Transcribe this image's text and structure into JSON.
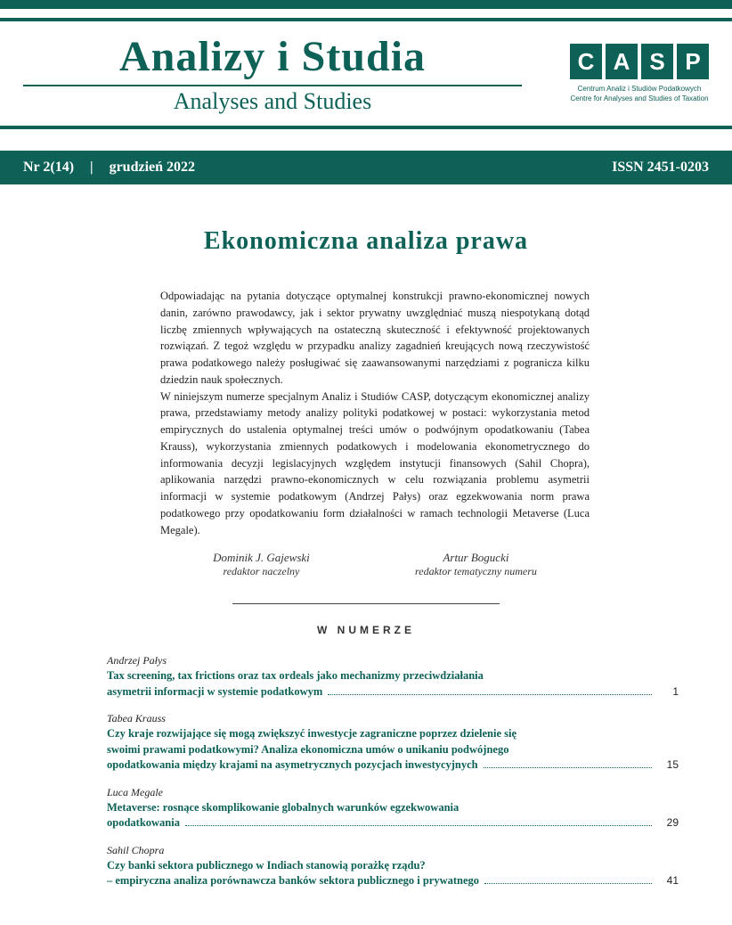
{
  "colors": {
    "teal": "#0d6157",
    "white": "#ffffff",
    "text": "#222222"
  },
  "masthead": {
    "title": "Analizy i Studia",
    "subtitle": "Analyses and Studies",
    "logo_letters": [
      "C",
      "A",
      "S",
      "P"
    ],
    "logo_caption_line1": "Centrum Analiz i Studiów Podatkowych",
    "logo_caption_line2": "Centre for Analyses and Studies of Taxation"
  },
  "issue_bar": {
    "number": "Nr 2(14)",
    "date": "grudzień 2022",
    "issn": "ISSN 2451-0203"
  },
  "article": {
    "title": "Ekonomiczna analiza prawa",
    "paragraph1": "Odpowiadając na pytania dotyczące optymalnej konstrukcji prawno-ekonomicznej nowych danin, zarówno prawodawcy, jak i sektor prywatny uwzględniać muszą niespotykaną dotąd liczbę zmiennych wpływających na ostateczną skuteczność i efektywność projektowanych rozwiązań. Z tegoż względu w przypadku analizy zagadnień kreujących nową rzeczywistość prawa podatkowego należy posługiwać się zaawansowanymi narzędziami z pogranicza kilku dziedzin nauk społecznych.",
    "paragraph2": "W niniejszym numerze specjalnym Analiz i Studiów CASP, dotyczącym ekonomicznej analizy prawa, przedstawiamy metody analizy polityki podatkowej w postaci: wykorzystania metod empirycznych do ustalenia optymalnej treści umów o podwójnym opodatkowaniu (Tabea Krauss), wykorzystania zmiennych podatkowych i modelowania ekonometrycznego do informowania decyzji legislacyjnych względem instytucji finansowych (Sahil Chopra), aplikowania narzędzi prawno-ekonomicznych w celu rozwiązania problemu asymetrii informacji w systemie podatkowym (Andrzej Pałys) oraz egzekwowania norm prawa podatkowego przy opodatkowaniu form działalności w ramach technologii Metaverse (Luca Megale)."
  },
  "editors": [
    {
      "name": "Dominik J. Gajewski",
      "role": "redaktor naczelny"
    },
    {
      "name": "Artur Bogucki",
      "role": "redaktor tematyczny numeru"
    }
  ],
  "toc": {
    "header": "W NUMERZE",
    "entries": [
      {
        "author": "Andrzej Pałys",
        "title_lines": [
          "Tax screening, tax frictions oraz tax ordeals jako mechanizmy przeciwdziałania",
          "asymetrii informacji w systemie podatkowym"
        ],
        "page": "1"
      },
      {
        "author": "Tabea Krauss",
        "title_lines": [
          "Czy kraje rozwijające się mogą zwiększyć inwestycje zagraniczne poprzez dzielenie się",
          "swoimi prawami podatkowymi? Analiza ekonomiczna umów o unikaniu podwójnego",
          "opodatkowania między krajami na asymetrycznych pozycjach inwestycyjnych"
        ],
        "page": "15"
      },
      {
        "author": "Luca Megale",
        "title_lines": [
          "Metaverse: rosnące skomplikowanie globalnych warunków egzekwowania",
          "opodatkowania"
        ],
        "page": "29"
      },
      {
        "author": "Sahil Chopra",
        "title_lines": [
          "Czy banki sektora publicznego w Indiach stanowią porażkę rządu?",
          "– empiryczna analiza porównawcza banków sektora publicznego i prywatnego"
        ],
        "page": "41"
      }
    ]
  }
}
